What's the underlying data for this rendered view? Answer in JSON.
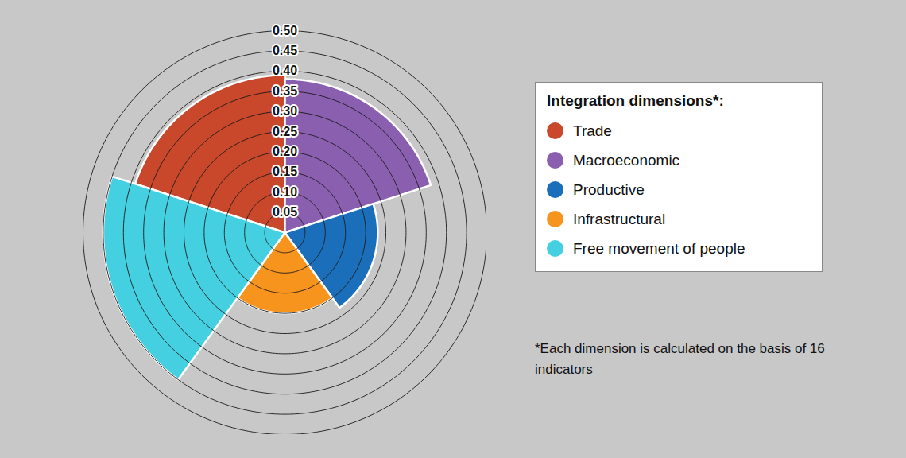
{
  "chart_data": {
    "type": "polar_area",
    "legend_title": "Integration dimensions*:",
    "annotations": [
      "*Each dimension is calculated on the basis of 16 indicators"
    ],
    "categories": [
      "Trade",
      "Macroeconomic",
      "Productive",
      "Infrastructural",
      "Free movement of people"
    ],
    "values": [
      0.39,
      0.38,
      0.23,
      0.2,
      0.45
    ],
    "colors": [
      "#c9472a",
      "#8a5fb0",
      "#1b6fba",
      "#f7941d",
      "#45d0e2"
    ],
    "ylim": [
      0,
      0.5
    ],
    "yticks": [
      0.05,
      {
        "value": 0.1,
        "label": "0.10"
      },
      0.15,
      {
        "value": 0.2,
        "label": "0.20"
      },
      0.25,
      {
        "value": 0.3,
        "label": "0.30"
      },
      0.35,
      {
        "value": 0.4,
        "label": "0.40"
      },
      0.45,
      {
        "value": 0.5,
        "label": "0.50"
      }
    ],
    "grid": true,
    "legend": "right"
  }
}
